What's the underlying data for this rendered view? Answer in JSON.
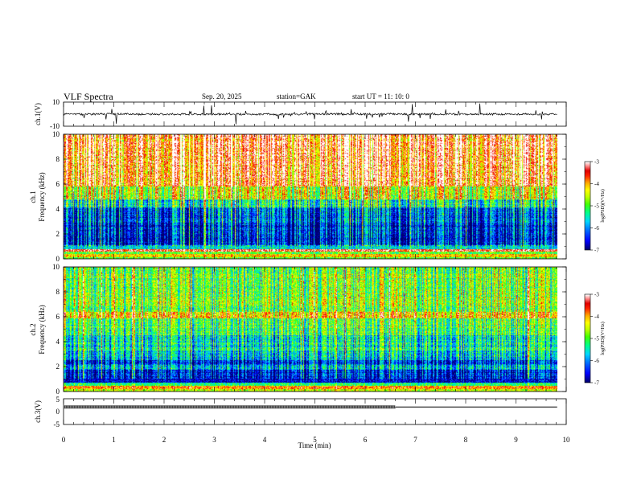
{
  "header": {
    "title": "VLF  Spectra",
    "date": "Sep. 20, 2025",
    "station": "station=GAK",
    "start": "start  UT  =    11: 10: 0"
  },
  "chart_data": [
    {
      "type": "line",
      "name": "ch1-waveform",
      "ylabel": "ch.1(V)",
      "ylim": [
        -10,
        10
      ],
      "yticks": [
        "10",
        "-10"
      ],
      "xlim": [
        0,
        10
      ],
      "baseline": 0,
      "data_end_min": 9.82,
      "line_color": "#000000"
    },
    {
      "type": "heatmap",
      "name": "ch1-spectrogram",
      "ylabel_channel": "ch.1",
      "ylabel": "Frequency  (kHz)",
      "ylim": [
        0,
        10
      ],
      "yticks": [
        "0",
        "2",
        "4",
        "6",
        "8",
        "10"
      ],
      "xlim": [
        0,
        10
      ],
      "data_end_min": 9.82,
      "colorbar": {
        "label": "log(PSD)(V²/Hz)",
        "range": [
          -7,
          -3
        ],
        "ticks": [
          "-3",
          "-4",
          "-5",
          "-6",
          "-7"
        ]
      }
    },
    {
      "type": "heatmap",
      "name": "ch2-spectrogram",
      "ylabel_channel": "ch.2",
      "ylabel": "Frequency  (kHz)",
      "ylim": [
        0,
        10
      ],
      "yticks": [
        "0",
        "2",
        "4",
        "6",
        "8",
        "10"
      ],
      "xlim": [
        0,
        10
      ],
      "data_end_min": 9.82,
      "colorbar": {
        "label": "log(PSD)(V²/Hz)",
        "range": [
          -7,
          -3
        ],
        "ticks": [
          "-3",
          "-4",
          "-5",
          "-6",
          "-7"
        ]
      }
    },
    {
      "type": "line",
      "name": "ch3-signal",
      "ylabel": "ch.3(V)",
      "ylim": [
        -5,
        5
      ],
      "yticks": [
        "5",
        "0",
        "-5"
      ],
      "xlim": [
        0,
        10
      ],
      "level": 1.8,
      "dense_until_min": 6.6,
      "data_end_min": 9.82,
      "xlabel": "Time  (min)",
      "xticks": [
        "0",
        "1",
        "2",
        "3",
        "4",
        "5",
        "6",
        "7",
        "8",
        "9",
        "10"
      ]
    }
  ],
  "palette": [
    "#00007a",
    "#0000ff",
    "#0077ff",
    "#00d0ff",
    "#00ff90",
    "#40ff00",
    "#c0ff00",
    "#ffff00",
    "#ffaa00",
    "#ff3300",
    "#e80000",
    "#ff8080",
    "#ffffff"
  ]
}
